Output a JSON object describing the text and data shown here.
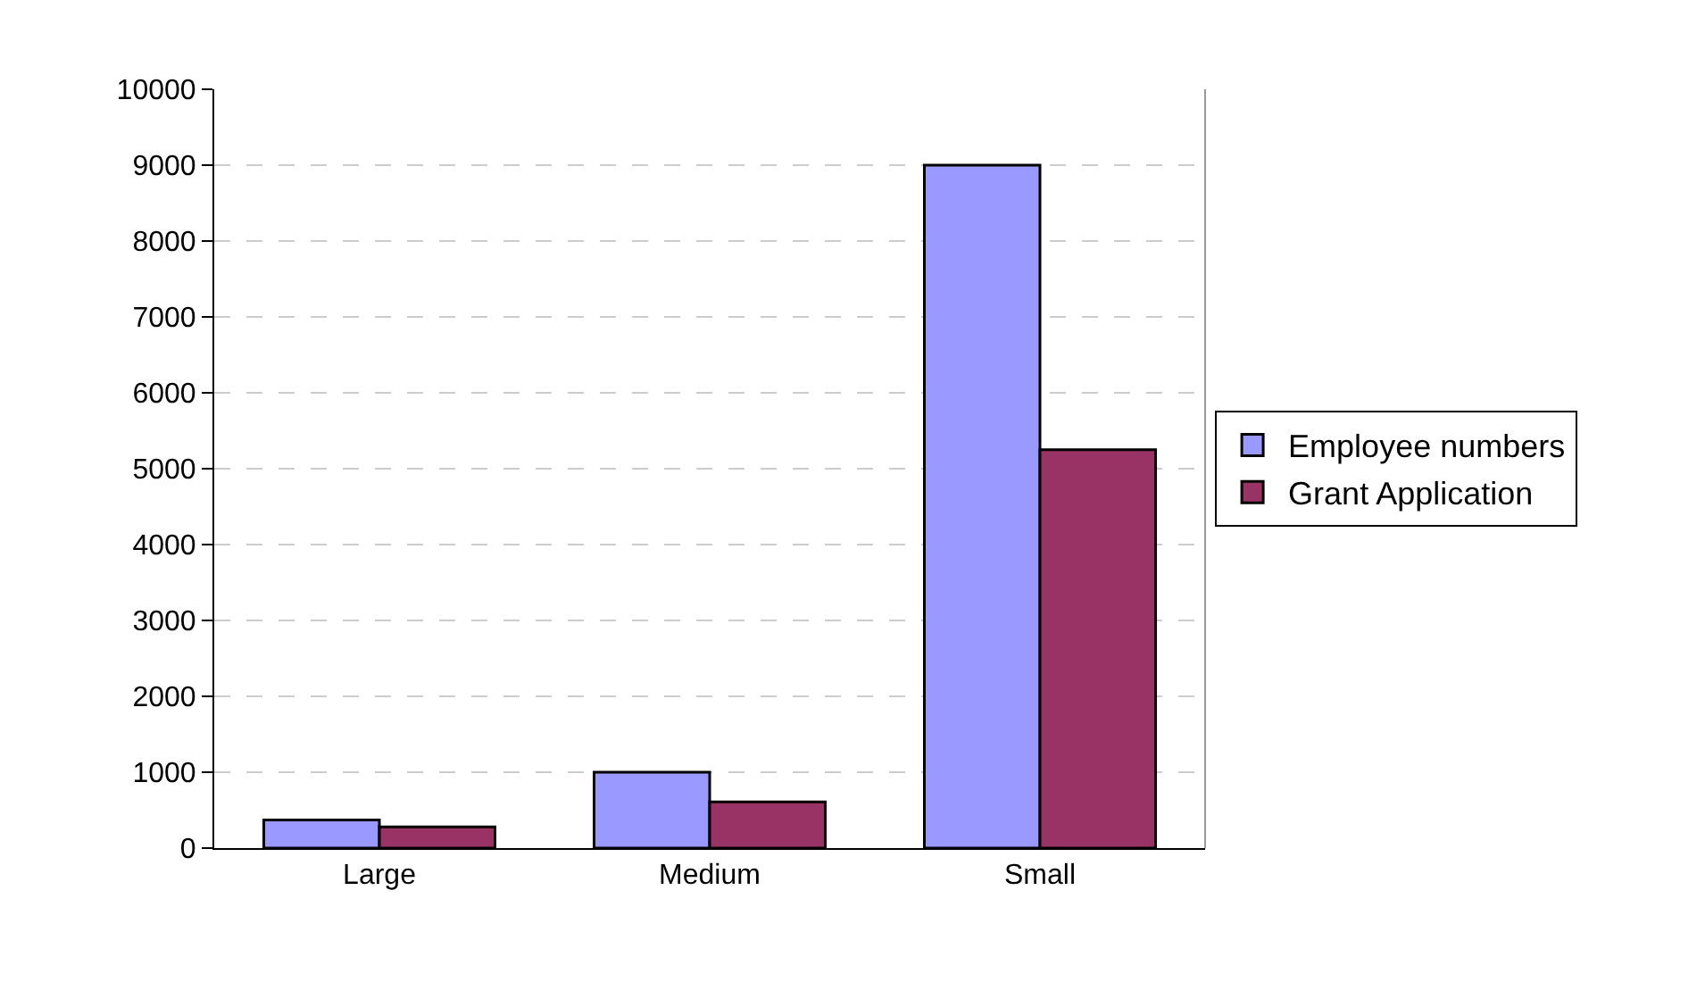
{
  "chart_data": {
    "type": "bar",
    "categories": [
      "Large",
      "Medium",
      "Small"
    ],
    "series": [
      {
        "name": "Employee numbers",
        "color": "#9999ff",
        "values": [
          370,
          1000,
          9000
        ]
      },
      {
        "name": "Grant Application",
        "color": "#993366",
        "values": [
          280,
          610,
          5250
        ]
      }
    ],
    "ylim": [
      0,
      10000
    ],
    "yticks": [
      0,
      1000,
      2000,
      3000,
      4000,
      5000,
      6000,
      7000,
      8000,
      9000,
      10000
    ],
    "grid": "y",
    "legend": "right"
  }
}
